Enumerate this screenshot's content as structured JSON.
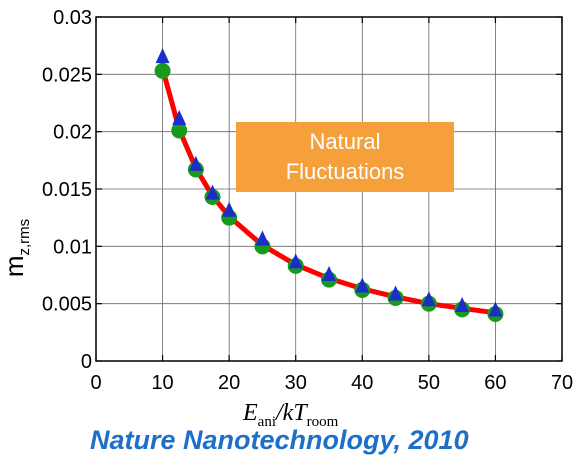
{
  "chart_data": {
    "type": "line",
    "ylabel_main": "m",
    "ylabel_sub": "z,rms",
    "xlabel_main_E": "E",
    "xlabel_sub_ani": "ani",
    "xlabel_slash_kT": "/kT",
    "xlabel_sub_room": "room",
    "xlim": [
      0,
      70
    ],
    "ylim": [
      0,
      0.03
    ],
    "x_ticks": [
      "0",
      "10",
      "20",
      "30",
      "40",
      "50",
      "60",
      "70"
    ],
    "y_ticks": [
      "0",
      "0.005",
      "0.01",
      "0.015",
      "0.02",
      "0.025",
      "0.03"
    ],
    "grid": true,
    "series": [
      {
        "marker": "line",
        "color": "#ff0000",
        "x": [
          10,
          12.5,
          15,
          17.5,
          20,
          25,
          30,
          35,
          40,
          45,
          50,
          55,
          60
        ],
        "y": [
          0.0255,
          0.0202,
          0.0168,
          0.0144,
          0.0126,
          0.0101,
          0.0084,
          0.0072,
          0.0063,
          0.0056,
          0.005,
          0.0046,
          0.0042
        ]
      },
      {
        "marker": "circle",
        "color": "#1a9a1a",
        "x": [
          10,
          12.5,
          15,
          17.5,
          20,
          25,
          30,
          35,
          40,
          45,
          50,
          55,
          60
        ],
        "y": [
          0.0253,
          0.0201,
          0.0167,
          0.0143,
          0.0125,
          0.01,
          0.0083,
          0.0071,
          0.0062,
          0.0055,
          0.005,
          0.0045,
          0.0041
        ]
      },
      {
        "marker": "triangle",
        "color": "#1a2ec8",
        "x": [
          10,
          12.5,
          15,
          17.5,
          20,
          25,
          30,
          35,
          40,
          45,
          50,
          55,
          60
        ],
        "y": [
          0.0265,
          0.0211,
          0.0171,
          0.0146,
          0.0131,
          0.0106,
          0.0086,
          0.0075,
          0.0065,
          0.0058,
          0.0053,
          0.0048,
          0.0044
        ]
      }
    ]
  },
  "annotation": {
    "line1": "Natural",
    "line2": "Fluctuations"
  },
  "citation": "Nature Nanotechnology, 2010"
}
